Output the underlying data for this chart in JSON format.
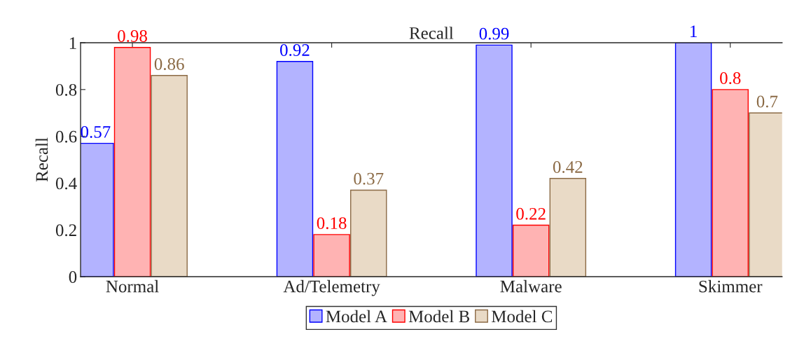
{
  "chart_data": {
    "type": "bar",
    "title": "Recall",
    "ylabel": "Recall",
    "categories": [
      "Normal",
      "Ad/Telemetry",
      "Malware",
      "Skimmer"
    ],
    "series": [
      {
        "name": "Model A",
        "color": "#b3b3ff",
        "values": [
          0.57,
          0.92,
          0.99,
          1
        ]
      },
      {
        "name": "Model B",
        "color": "#ffb3b3",
        "values": [
          0.98,
          0.18,
          0.22,
          0.8
        ]
      },
      {
        "name": "Model C",
        "color": "#e9dac6",
        "values": [
          0.86,
          0.37,
          0.42,
          0.7
        ]
      }
    ],
    "ylim": [
      0,
      1
    ],
    "yticks": [
      0,
      0.2,
      0.4,
      0.6,
      0.8,
      1
    ],
    "data_labels": true,
    "legend": "bottom",
    "grid": false
  }
}
